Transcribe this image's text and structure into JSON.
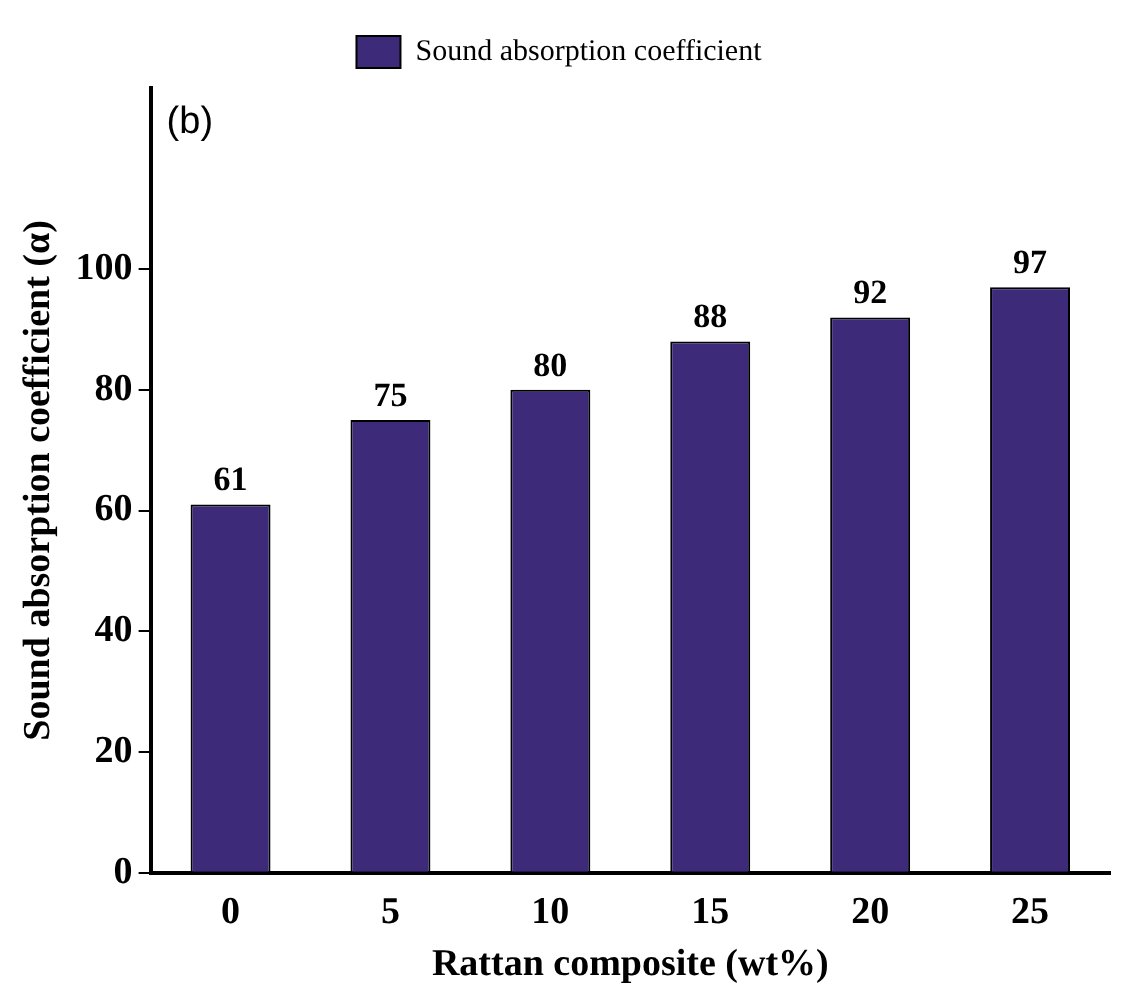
{
  "chart_data": {
    "type": "bar",
    "xlabel": "Rattan composite (wt%)",
    "ylabel": "Sound absorption coefficient (α)",
    "categories": [
      "0",
      "5",
      "10",
      "15",
      "20",
      "25"
    ],
    "series": [
      {
        "name": "Sound absorption coefficient",
        "color": "#3d2b7a",
        "values": [
          61,
          75,
          80,
          88,
          92,
          97
        ]
      }
    ],
    "ylim": [
      0,
      130
    ],
    "yticks": [
      0,
      20,
      40,
      60,
      80,
      100
    ],
    "data_labels": true,
    "legend": "top",
    "grid": false,
    "annotations": [
      "(b)"
    ]
  }
}
